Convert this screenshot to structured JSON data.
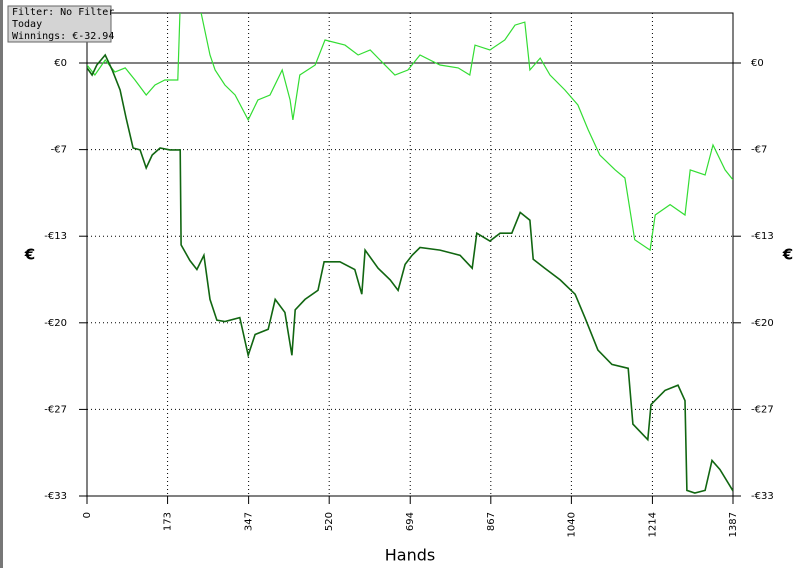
{
  "chart_data": {
    "type": "line",
    "info": [
      "Filter: No Filter",
      "Today",
      "Winnings: €-32.94"
    ],
    "xlabel": "Hands",
    "ylabel": "€",
    "xlim": [
      0,
      1387
    ],
    "xticks": [
      0,
      173,
      347,
      520,
      694,
      867,
      1040,
      1214,
      1387
    ],
    "ylim": [
      -33.333,
      3.85
    ],
    "yticks": [
      {
        "value": 0,
        "label": "€0"
      },
      {
        "value": -6.667,
        "label": "-€7"
      },
      {
        "value": -13.333,
        "label": "-€13"
      },
      {
        "value": -20,
        "label": "-€20"
      },
      {
        "value": -26.667,
        "label": "-€27"
      },
      {
        "value": -33.333,
        "label": "-€33"
      }
    ],
    "grid": true,
    "series": [
      {
        "color": "#33dd33",
        "x": [
          0,
          17,
          39,
          60,
          82,
          103,
          127,
          146,
          167,
          195,
          200,
          243,
          264,
          275,
          296,
          318,
          346,
          367,
          393,
          419,
          436,
          442,
          457,
          490,
          511,
          554,
          582,
          608,
          629,
          661,
          689,
          715,
          758,
          797,
          822,
          833,
          865,
          897,
          919,
          940,
          951,
          973,
          994,
          1026,
          1054,
          1076,
          1101,
          1134,
          1155,
          1176,
          1209,
          1220,
          1252,
          1284,
          1295,
          1327,
          1344,
          1370,
          1387
        ],
        "values": [
          -0.15,
          -0.92,
          0.23,
          -0.69,
          -0.38,
          -1.31,
          -2.46,
          -1.69,
          -1.31,
          -1.31,
          4.5,
          4.2,
          0.62,
          -0.54,
          -1.69,
          -2.46,
          -4.38,
          -2.85,
          -2.46,
          -0.54,
          -2.85,
          -4.38,
          -0.92,
          -0.15,
          1.77,
          1.38,
          0.62,
          1.0,
          0.23,
          -0.92,
          -0.54,
          0.62,
          -0.15,
          -0.38,
          -0.92,
          1.38,
          1.0,
          1.77,
          2.92,
          3.15,
          -0.54,
          0.38,
          -0.92,
          -2.08,
          -3.23,
          -5.15,
          -7.08,
          -8.23,
          -8.85,
          -13.6,
          -14.4,
          -11.7,
          -10.9,
          -11.7,
          -8.23,
          -8.62,
          -6.31,
          -8.23,
          -9.0
        ]
      },
      {
        "color": "#116611",
        "x": [
          0,
          11,
          21,
          39,
          54,
          71,
          84,
          99,
          114,
          127,
          140,
          157,
          178,
          200,
          202,
          221,
          236,
          251,
          264,
          279,
          296,
          328,
          346,
          361,
          389,
          404,
          425,
          440,
          447,
          468,
          496,
          509,
          543,
          575,
          590,
          597,
          625,
          651,
          668,
          683,
          698,
          715,
          758,
          801,
          827,
          837,
          865,
          887,
          912,
          930,
          951,
          958,
          983,
          1016,
          1048,
          1069,
          1097,
          1127,
          1162,
          1172,
          1204,
          1211,
          1241,
          1269,
          1284,
          1288,
          1305,
          1327,
          1342,
          1359,
          1387
        ],
        "values": [
          -0.38,
          -0.92,
          -0.15,
          0.62,
          -0.54,
          -2.08,
          -4.23,
          -6.54,
          -6.69,
          -8.08,
          -7.08,
          -6.54,
          -6.69,
          -6.69,
          -14.0,
          -15.2,
          -15.9,
          -14.8,
          -18.2,
          -19.8,
          -19.9,
          -19.6,
          -22.5,
          -20.9,
          -20.5,
          -18.2,
          -19.2,
          -22.5,
          -19.0,
          -18.2,
          -17.5,
          -15.3,
          -15.3,
          -15.9,
          -17.8,
          -14.4,
          -15.8,
          -16.7,
          -17.5,
          -15.5,
          -14.8,
          -14.2,
          -14.4,
          -14.8,
          -15.8,
          -13.1,
          -13.7,
          -13.1,
          -13.1,
          -11.5,
          -12.1,
          -15.1,
          -15.8,
          -16.7,
          -17.8,
          -19.6,
          -22.1,
          -23.2,
          -23.5,
          -27.8,
          -29.0,
          -26.3,
          -25.2,
          -24.8,
          -26.0,
          -32.9,
          -33.1,
          -32.9,
          -30.6,
          -31.3,
          -32.94
        ]
      }
    ]
  }
}
